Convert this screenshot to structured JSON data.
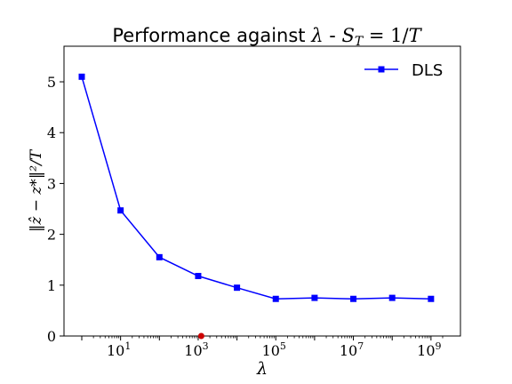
{
  "chart_data": {
    "type": "line",
    "title_text": "Performance against ",
    "title_lambda": "λ",
    "title_dash": " - ",
    "title_s": "S",
    "title_sub": "T",
    "title_eq": " = 1/",
    "title_T": "T",
    "xlabel": "λ",
    "ylabel": "‖ẑ − z*‖²/T",
    "x_scale": "log",
    "xlim": [
      1,
      2000000000
    ],
    "ylim": [
      0,
      5.7
    ],
    "x_ticks": [
      {
        "value": 10,
        "base": "10",
        "exp": "1"
      },
      {
        "value": 1000,
        "base": "10",
        "exp": "3"
      },
      {
        "value": 100000,
        "base": "10",
        "exp": "5"
      },
      {
        "value": 10000000,
        "base": "10",
        "exp": "7"
      },
      {
        "value": 1000000000,
        "base": "10",
        "exp": "9"
      }
    ],
    "y_ticks": [
      0,
      1,
      2,
      3,
      4,
      5
    ],
    "legend_position": "top-right",
    "series": [
      {
        "name": "DLS",
        "color": "#0000ff",
        "marker": "square",
        "x": [
          1,
          10,
          100,
          1000,
          10000,
          100000,
          1000000,
          10000000,
          100000000,
          1000000000
        ],
        "y": [
          5.1,
          2.47,
          1.55,
          1.18,
          0.95,
          0.73,
          0.75,
          0.73,
          0.75,
          0.73
        ]
      }
    ],
    "highlight_points": [
      {
        "x": 1200,
        "y": 0,
        "color": "#cc0000"
      }
    ]
  }
}
